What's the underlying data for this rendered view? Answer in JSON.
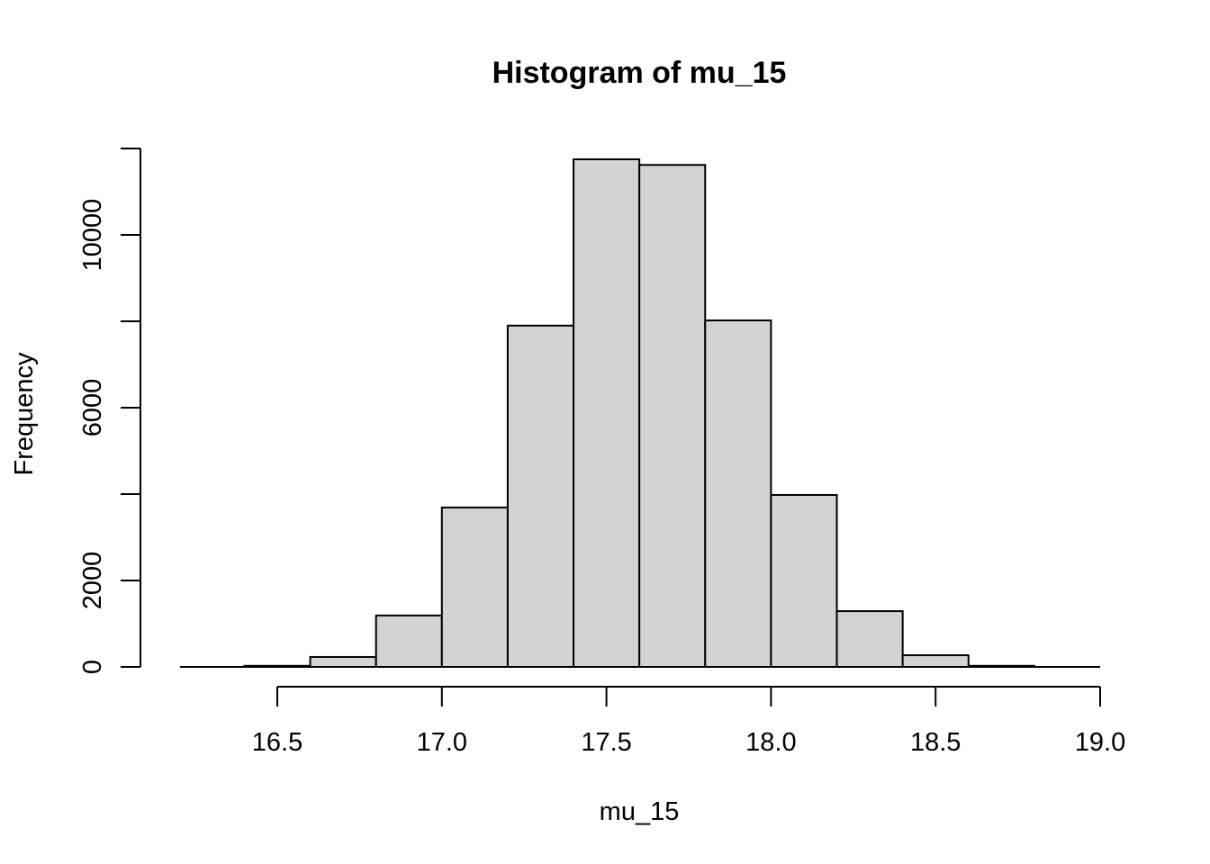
{
  "chart_data": {
    "type": "bar",
    "title": "Histogram of mu_15",
    "xlabel": "mu_15",
    "ylabel": "Frequency",
    "bin_edges": [
      16.4,
      16.6,
      16.8,
      17.0,
      17.2,
      17.4,
      17.6,
      17.8,
      18.0,
      18.2,
      18.4,
      18.6,
      18.8
    ],
    "values": [
      25,
      230,
      1190,
      3690,
      7900,
      11750,
      11620,
      8020,
      3980,
      1290,
      270,
      25
    ],
    "xlim": [
      16.5,
      19.0
    ],
    "ylim": [
      0,
      12000
    ],
    "x_ticks": [
      16.5,
      17.0,
      17.5,
      18.0,
      18.5,
      19.0
    ],
    "x_tick_labels": [
      "16.5",
      "17.0",
      "17.5",
      "18.0",
      "18.5",
      "19.0"
    ],
    "y_ticks": [
      0,
      2000,
      4000,
      6000,
      8000,
      10000,
      12000
    ],
    "y_tick_labels": [
      "0",
      "2000",
      "",
      "6000",
      "",
      "10000",
      ""
    ],
    "grid": false,
    "bar_color": "#d3d3d3",
    "edge_color": "#000000"
  }
}
